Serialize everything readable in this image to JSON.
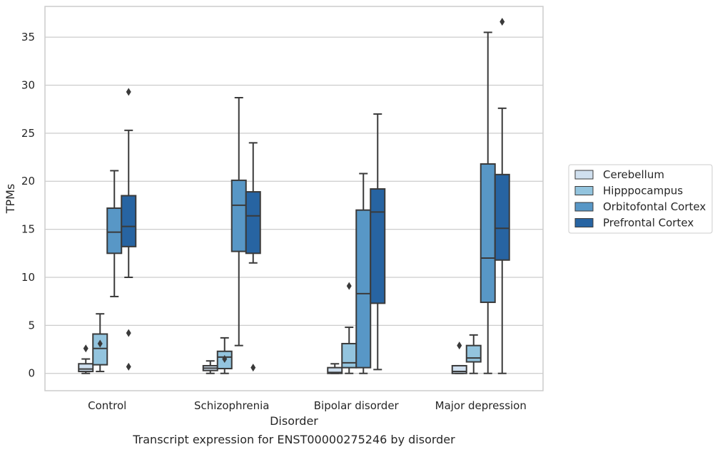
{
  "caption": "Transcript expression for ENST00000275246 by disorder",
  "chart_data": {
    "type": "box",
    "title": "",
    "xlabel": "Disorder",
    "ylabel": "TPMs",
    "ylim": [
      -1.8,
      38.2
    ],
    "yticks": [
      0,
      5,
      10,
      15,
      20,
      25,
      30,
      35
    ],
    "grid": "horizontal",
    "legend_position": "right",
    "categories": [
      "Control",
      "Schizophrenia",
      "Bipolar disorder",
      "Major depression"
    ],
    "series": [
      {
        "name": "Cerebellum",
        "color": "#d0e0ef",
        "boxes": [
          {
            "whislo": 0.0,
            "q1": 0.2,
            "med": 0.45,
            "q3": 1.0,
            "whishi": 1.5,
            "fliers": [
              2.6
            ]
          },
          {
            "whislo": 0.0,
            "q1": 0.3,
            "med": 0.55,
            "q3": 0.8,
            "whishi": 1.3,
            "fliers": []
          },
          {
            "whislo": 0.0,
            "q1": 0.0,
            "med": 0.1,
            "q3": 0.6,
            "whishi": 1.0,
            "fliers": []
          },
          {
            "whislo": 0.0,
            "q1": 0.0,
            "med": 0.2,
            "q3": 0.8,
            "whishi": 0.8,
            "fliers": [
              2.9
            ]
          }
        ]
      },
      {
        "name": "Hipppocampus",
        "color": "#93c4de",
        "boxes": [
          {
            "whislo": 0.2,
            "q1": 0.9,
            "med": 2.6,
            "q3": 4.1,
            "whishi": 6.2,
            "fliers": [
              3.1
            ]
          },
          {
            "whislo": 0.0,
            "q1": 0.5,
            "med": 1.7,
            "q3": 2.3,
            "whishi": 3.7,
            "fliers": [
              1.5
            ]
          },
          {
            "whislo": 0.0,
            "q1": 0.6,
            "med": 1.1,
            "q3": 3.1,
            "whishi": 4.8,
            "fliers": [
              9.1
            ]
          },
          {
            "whislo": 0.0,
            "q1": 1.2,
            "med": 1.6,
            "q3": 2.9,
            "whishi": 4.0,
            "fliers": []
          }
        ]
      },
      {
        "name": "Orbitofontal Cortex",
        "color": "#5897c6",
        "boxes": [
          {
            "whislo": 8.0,
            "q1": 12.5,
            "med": 14.7,
            "q3": 17.2,
            "whishi": 21.1,
            "fliers": []
          },
          {
            "whislo": 2.9,
            "q1": 12.7,
            "med": 17.5,
            "q3": 20.1,
            "whishi": 28.7,
            "fliers": []
          },
          {
            "whislo": 0.0,
            "q1": 0.6,
            "med": 8.3,
            "q3": 17.0,
            "whishi": 20.8,
            "fliers": []
          },
          {
            "whislo": 0.0,
            "q1": 7.4,
            "med": 12.0,
            "q3": 21.8,
            "whishi": 35.5,
            "fliers": []
          }
        ]
      },
      {
        "name": "Prefrontal Cortex",
        "color": "#2764a2",
        "boxes": [
          {
            "whislo": 10.0,
            "q1": 13.2,
            "med": 15.3,
            "q3": 18.5,
            "whishi": 25.3,
            "fliers": [
              29.3,
              4.2,
              0.7
            ]
          },
          {
            "whislo": 11.5,
            "q1": 12.5,
            "med": 16.4,
            "q3": 18.9,
            "whishi": 24.0,
            "fliers": [
              0.6
            ]
          },
          {
            "whislo": 0.4,
            "q1": 7.3,
            "med": 16.8,
            "q3": 19.2,
            "whishi": 27.0,
            "fliers": []
          },
          {
            "whislo": 0.0,
            "q1": 11.8,
            "med": 15.1,
            "q3": 20.7,
            "whishi": 27.6,
            "fliers": [
              36.6
            ]
          }
        ]
      }
    ]
  }
}
